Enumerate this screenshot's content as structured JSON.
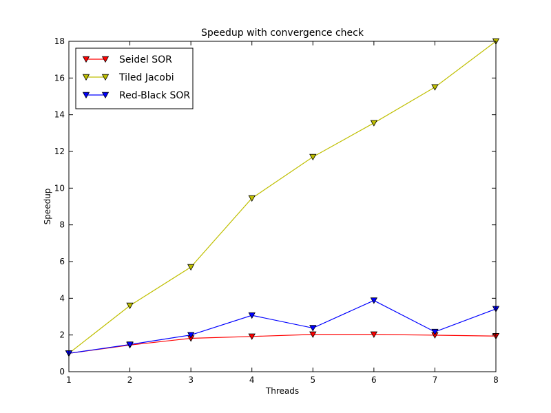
{
  "chart_data": {
    "type": "line",
    "title": "Speedup with convergence check",
    "xlabel": "Threads",
    "ylabel": "Speedup",
    "x": [
      1,
      2,
      3,
      4,
      5,
      6,
      7,
      8
    ],
    "xlim": [
      1,
      8
    ],
    "ylim": [
      0,
      18
    ],
    "xticks": [
      "1",
      "2",
      "3",
      "4",
      "5",
      "6",
      "7",
      "8"
    ],
    "yticks": [
      "0",
      "2",
      "4",
      "6",
      "8",
      "10",
      "12",
      "14",
      "16",
      "18"
    ],
    "grid": false,
    "legend_position": "top-left",
    "marker": "triangle-down",
    "series": [
      {
        "name": "Seidel SOR",
        "color": "#ff0000",
        "values": [
          1.0,
          1.45,
          1.82,
          1.92,
          2.03,
          2.03,
          1.99,
          1.94
        ]
      },
      {
        "name": "Tiled Jacobi",
        "color": "#bfbf00",
        "values": [
          1.0,
          3.6,
          5.7,
          9.45,
          11.7,
          13.55,
          15.5,
          18.0
        ]
      },
      {
        "name": "Red-Black SOR",
        "color": "#0000ff",
        "values": [
          1.0,
          1.48,
          2.0,
          3.07,
          2.38,
          3.88,
          2.17,
          3.42
        ]
      }
    ]
  }
}
